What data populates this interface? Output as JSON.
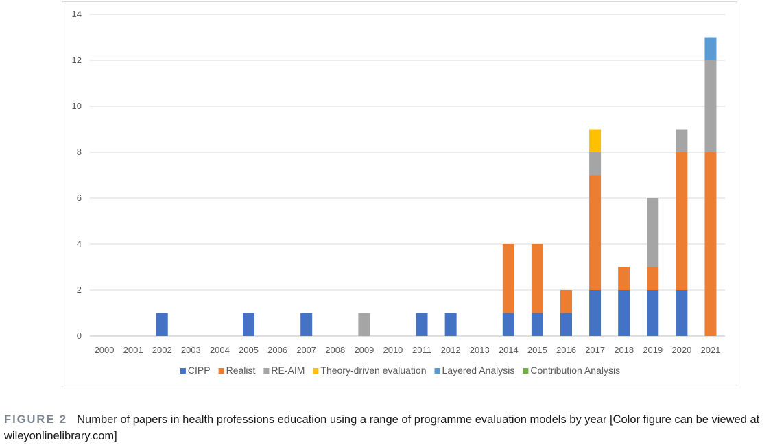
{
  "chart_data": {
    "type": "bar",
    "stacked": true,
    "title": "",
    "xlabel": "",
    "ylabel": "",
    "ylim": [
      0,
      14
    ],
    "yticks": [
      0,
      2,
      4,
      6,
      8,
      10,
      12,
      14
    ],
    "grid": true,
    "legend_position": "bottom",
    "categories": [
      "2000",
      "2001",
      "2002",
      "2003",
      "2004",
      "2005",
      "2006",
      "2007",
      "2008",
      "2009",
      "2010",
      "2011",
      "2012",
      "2013",
      "2014",
      "2015",
      "2016",
      "2017",
      "2018",
      "2019",
      "2020",
      "2021"
    ],
    "series": [
      {
        "name": "CIPP",
        "color": "#4472c4",
        "values": [
          0,
          0,
          1,
          0,
          0,
          1,
          0,
          1,
          0,
          0,
          0,
          1,
          1,
          0,
          1,
          1,
          1,
          2,
          2,
          2,
          2,
          0
        ]
      },
      {
        "name": "Realist",
        "color": "#ed7d31",
        "values": [
          0,
          0,
          0,
          0,
          0,
          0,
          0,
          0,
          0,
          0,
          0,
          0,
          0,
          0,
          3,
          3,
          1,
          5,
          1,
          1,
          6,
          8
        ]
      },
      {
        "name": "RE-AIM",
        "color": "#a5a5a5",
        "values": [
          0,
          0,
          0,
          0,
          0,
          0,
          0,
          0,
          0,
          1,
          0,
          0,
          0,
          0,
          0,
          0,
          0,
          1,
          0,
          3,
          1,
          4
        ]
      },
      {
        "name": "Theory-driven evaluation",
        "color": "#ffc000",
        "values": [
          0,
          0,
          0,
          0,
          0,
          0,
          0,
          0,
          0,
          0,
          0,
          0,
          0,
          0,
          0,
          0,
          0,
          1,
          0,
          0,
          0,
          0
        ]
      },
      {
        "name": "Layered Analysis",
        "color": "#5b9bd5",
        "values": [
          0,
          0,
          0,
          0,
          0,
          0,
          0,
          0,
          0,
          0,
          0,
          0,
          0,
          0,
          0,
          0,
          0,
          0,
          0,
          0,
          0,
          1
        ]
      },
      {
        "name": "Contribution Analysis",
        "color": "#70ad47",
        "values": [
          0,
          0,
          0,
          0,
          0,
          0,
          0,
          0,
          0,
          0,
          0,
          0,
          0,
          0,
          0,
          0,
          0,
          0,
          0,
          0,
          0,
          0
        ]
      }
    ]
  },
  "caption": {
    "label": "FIGURE 2",
    "text": "Number of papers in health professions education using a range of programme evaluation models by year [Color figure can be viewed at wileyonlinelibrary.com]"
  }
}
